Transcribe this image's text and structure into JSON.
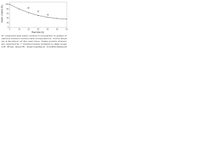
{
  "chart_data": {
    "type": "line",
    "y_label": "Water content (%)",
    "x_label": "Raw time (h)",
    "x": [
      0,
      10,
      20,
      30,
      40,
      50,
      60
    ],
    "series": [
      {
        "name": "Kerb",
        "color": "#555555",
        "values": [
          100,
          80,
          64,
          52,
          44,
          39,
          36
        ]
      }
    ],
    "xlim": [
      0,
      60
    ],
    "xticks": [
      0,
      10,
      20,
      30,
      40,
      50,
      60
    ],
    "ylim": [
      0,
      110
    ],
    "yticks": [
      0,
      20,
      40,
      60,
      80,
      100
    ],
    "annotations": [
      "80",
      "60",
      "40"
    ],
    "notes": [
      "M: measured kerb water content in comparison to guides of",
      "various mixture content and compositions. Curve fitted",
      "as a function of the raw time. Data points shown",
      "are reported for 7 minutes before analysis to data range",
      "of the kerb samples indicated"
    ]
  }
}
